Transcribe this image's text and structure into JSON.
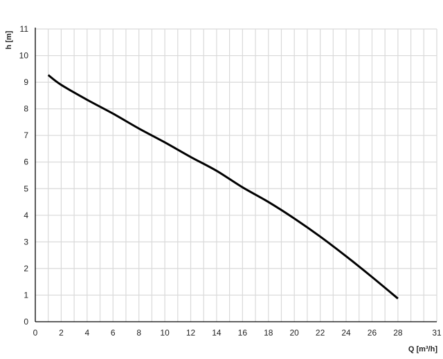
{
  "chart_data": {
    "type": "line",
    "title": "",
    "xlabel": "Q [m³/h]",
    "ylabel": "h [m]",
    "xlim": [
      0,
      31
    ],
    "ylim": [
      0,
      11
    ],
    "x_ticks": [
      0,
      2,
      4,
      6,
      8,
      10,
      12,
      14,
      16,
      18,
      20,
      22,
      24,
      26,
      28,
      31
    ],
    "y_ticks": [
      0,
      1,
      2,
      3,
      4,
      5,
      6,
      7,
      8,
      9,
      10,
      11
    ],
    "grid": true,
    "grid_step_x": 1,
    "grid_step_y": 1,
    "line_color": "#000000",
    "grid_color": "#d9d9d9",
    "series": [
      {
        "x": [
          1,
          2,
          4,
          6,
          8,
          10,
          12,
          14,
          16,
          18,
          20,
          22,
          24,
          26,
          28
        ],
        "y": [
          9.27,
          8.9,
          8.34,
          7.82,
          7.26,
          6.74,
          6.19,
          5.67,
          5.05,
          4.5,
          3.88,
          3.2,
          2.46,
          1.68,
          0.87
        ]
      }
    ]
  }
}
